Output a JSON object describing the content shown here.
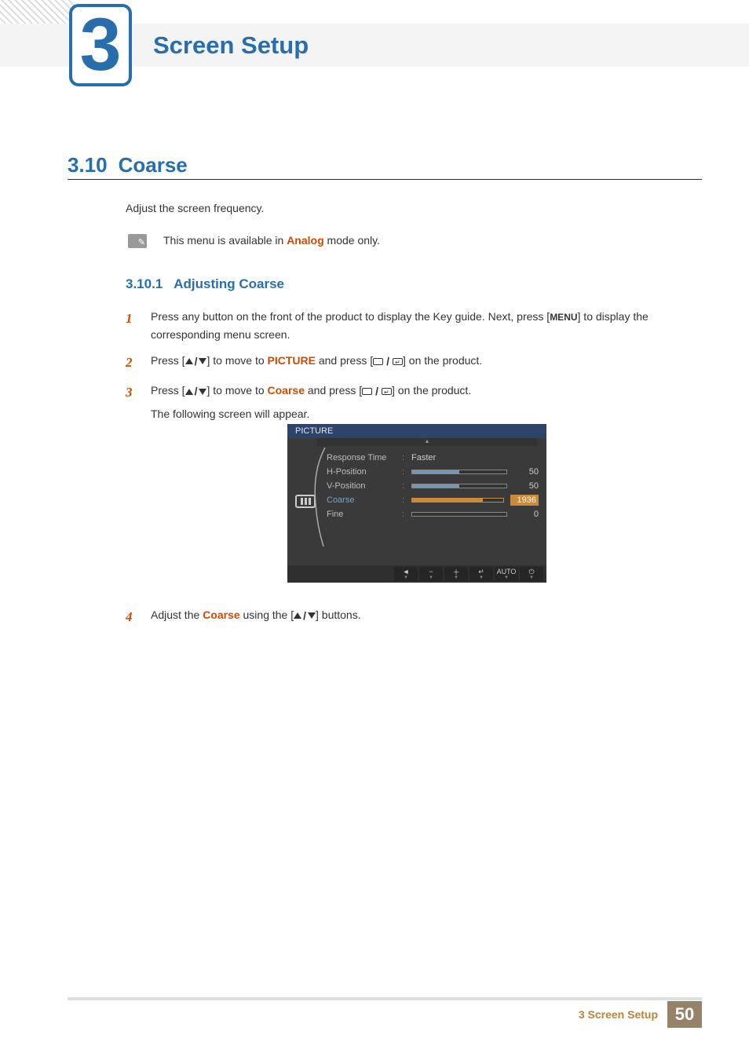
{
  "chapter": {
    "number": "3",
    "title": "Screen Setup"
  },
  "section": {
    "number": "3.10",
    "title": "Coarse"
  },
  "intro": "Adjust the screen frequency.",
  "note": {
    "pre": "This menu is available in ",
    "highlight": "Analog",
    "post": " mode only."
  },
  "subsection": {
    "number": "3.10.1",
    "title": "Adjusting Coarse"
  },
  "steps": {
    "s1": {
      "num": "1",
      "text_a": "Press any button on the front of the product to display the Key guide. Next, press [",
      "menu": "MENU",
      "text_b": "] to display the corresponding menu screen."
    },
    "s2": {
      "num": "2",
      "text_a": "Press [",
      "text_b": "] to move to ",
      "hl": "PICTURE",
      "text_c": " and press [",
      "text_d": "] on the product."
    },
    "s3": {
      "num": "3",
      "text_a": "Press [",
      "text_b": "] to move to ",
      "hl": "Coarse",
      "text_c": " and press [",
      "text_d": "] on the product.",
      "follow": "The following screen will appear."
    },
    "s4": {
      "num": "4",
      "text_a": "Adjust the ",
      "hl": "Coarse",
      "text_b": " using the [",
      "text_c": "] buttons."
    }
  },
  "osd": {
    "title": "PICTURE",
    "rows": [
      {
        "label": "Response Time",
        "type": "text",
        "value": "Faster",
        "selected": false
      },
      {
        "label": "H-Position",
        "type": "slider",
        "value": "50",
        "fill_pct": 50,
        "selected": false
      },
      {
        "label": "V-Position",
        "type": "slider",
        "value": "50",
        "fill_pct": 50,
        "selected": false
      },
      {
        "label": "Coarse",
        "type": "slider",
        "value": "1936",
        "fill_pct": 78,
        "selected": true
      },
      {
        "label": "Fine",
        "type": "slider",
        "value": "0",
        "fill_pct": 0,
        "selected": false
      }
    ],
    "buttons": [
      "◄",
      "−",
      "＋",
      "↵",
      "AUTO",
      "⏻"
    ],
    "colors": {
      "panel_bg": "#3a3a3a",
      "title_bg": "#2d446a",
      "selected_text": "#6fa7c9",
      "selected_fill": "#c98a3a"
    }
  },
  "footer": {
    "title": "3 Screen Setup",
    "page": "50"
  }
}
